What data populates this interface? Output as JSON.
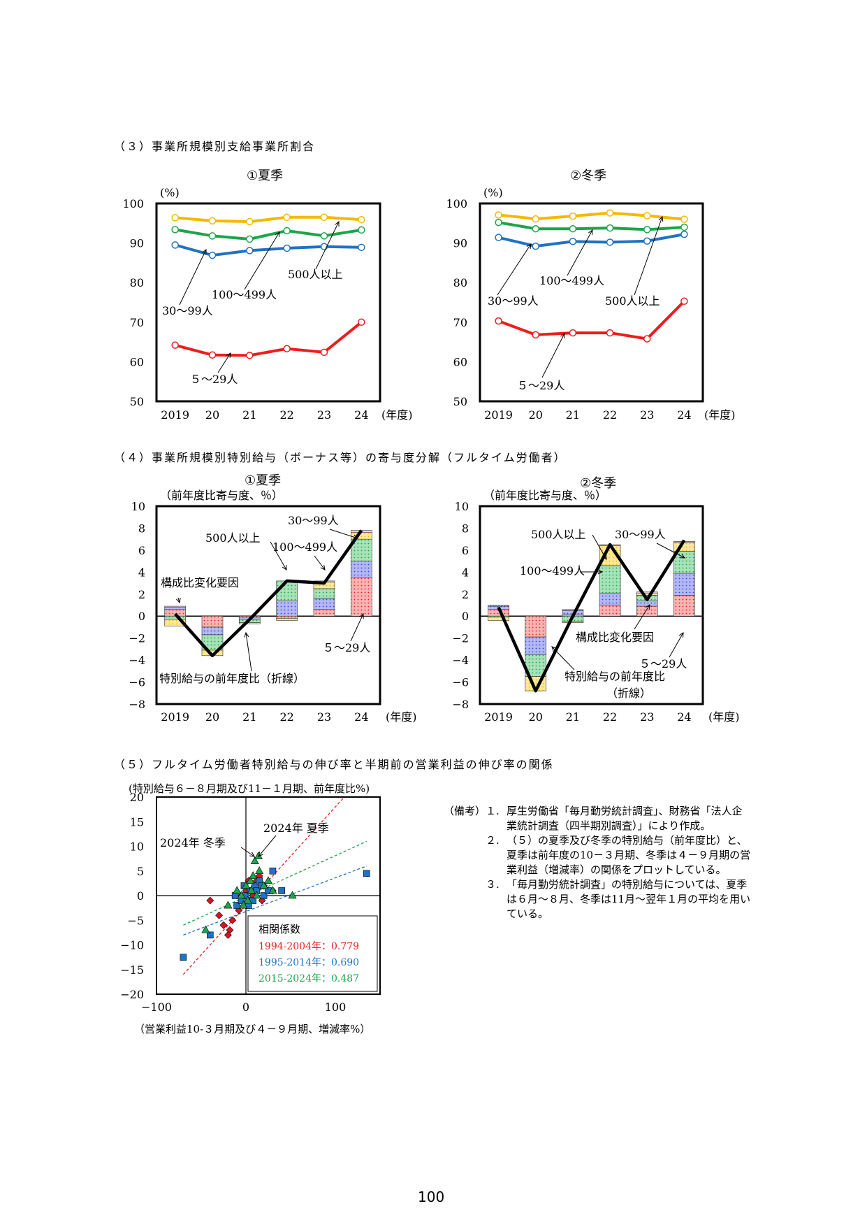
{
  "sections": {
    "s3": "（３）事業所規模別支給事業所割合",
    "s4": "（４）事業所規模別特別給与（ボーナス等）の寄与度分解（フルタイム労働者）",
    "s5": "（５）フルタイム労働者特別給与の伸び率と半期前の営業利益の伸び率の関係"
  },
  "colors": {
    "s500": "#f5b800",
    "s100": "#1aa64a",
    "s30": "#1f72c4",
    "s5": "#ee1c1c"
  },
  "chart_data": [
    {
      "id": "summer_ratio",
      "type": "line",
      "title": "①夏季",
      "ylabel": "(%)",
      "xunit": "(年度)",
      "x": [
        "2019",
        "20",
        "21",
        "22",
        "23",
        "24"
      ],
      "ylim": [
        50,
        100
      ],
      "yticks": [
        50,
        60,
        70,
        80,
        90,
        100
      ],
      "series": [
        {
          "name": "500人以上",
          "values": [
            96.4,
            95.6,
            95.4,
            96.5,
            96.5,
            95.9
          ]
        },
        {
          "name": "100〜499人",
          "values": [
            93.4,
            91.8,
            91.0,
            93.1,
            91.8,
            93.3
          ]
        },
        {
          "name": "30〜99人",
          "values": [
            89.5,
            86.9,
            88.1,
            88.7,
            89.1,
            88.9
          ]
        },
        {
          "name": "５〜29人",
          "values": [
            64.2,
            61.7,
            61.6,
            63.3,
            62.4,
            70.0
          ]
        }
      ]
    },
    {
      "id": "winter_ratio",
      "type": "line",
      "title": "②冬季",
      "ylabel": "(%)",
      "xunit": "(年度)",
      "x": [
        "2019",
        "20",
        "21",
        "22",
        "23",
        "24"
      ],
      "ylim": [
        50,
        100
      ],
      "yticks": [
        50,
        60,
        70,
        80,
        90,
        100
      ],
      "series": [
        {
          "name": "500人以上",
          "values": [
            97.1,
            96.1,
            96.8,
            97.6,
            96.9,
            96.0
          ]
        },
        {
          "name": "100〜499人",
          "values": [
            95.2,
            93.6,
            93.6,
            93.8,
            93.4,
            94.0
          ]
        },
        {
          "name": "30〜99人",
          "values": [
            91.4,
            89.2,
            90.4,
            90.2,
            90.5,
            92.2
          ]
        },
        {
          "name": "５〜29人",
          "values": [
            70.3,
            66.8,
            67.3,
            67.3,
            65.8,
            75.3
          ]
        }
      ]
    },
    {
      "id": "summer_contrib",
      "type": "bar",
      "title": "①夏季",
      "ylabel": "（前年度比寄与度、％）",
      "xunit": "(年度)",
      "x": [
        "2019",
        "20",
        "21",
        "22",
        "23",
        "24"
      ],
      "ylim": [
        -8,
        10
      ],
      "yticks": [
        -8,
        -6,
        -4,
        -2,
        0,
        2,
        4,
        6,
        8,
        10
      ],
      "stack_order": [
        "５〜29人",
        "30〜99人",
        "100〜499人",
        "500人以上",
        "構成比変化要因"
      ],
      "series": [
        {
          "name": "５〜29人",
          "values": [
            0.6,
            -1.0,
            -0.1,
            -0.2,
            0.6,
            3.5
          ]
        },
        {
          "name": "30〜99人",
          "values": [
            0.2,
            -0.7,
            -0.2,
            1.4,
            1.0,
            1.5
          ]
        },
        {
          "name": "100〜499人",
          "values": [
            -0.3,
            -1.4,
            -0.3,
            1.8,
            0.9,
            2.0
          ]
        },
        {
          "name": "500人以上",
          "values": [
            -0.6,
            -0.5,
            -0.1,
            -0.2,
            0.6,
            0.6
          ]
        },
        {
          "name": "構成比変化要因",
          "values": [
            0.1,
            0.0,
            0.0,
            0.0,
            0.1,
            0.2
          ]
        }
      ],
      "line": {
        "name": "特別給与の前年度比（折線）",
        "values": [
          0.2,
          -3.6,
          -0.3,
          3.2,
          3.0,
          7.8
        ]
      }
    },
    {
      "id": "winter_contrib",
      "type": "bar",
      "title": "②冬季",
      "ylabel": "（前年度比寄与度、％）",
      "xunit": "(年度)",
      "x": [
        "2019",
        "20",
        "21",
        "22",
        "23",
        "24"
      ],
      "ylim": [
        -8,
        10
      ],
      "yticks": [
        -8,
        -6,
        -4,
        -2,
        0,
        2,
        4,
        6,
        8,
        10
      ],
      "stack_order": [
        "５〜29人",
        "30〜99人",
        "100〜499人",
        "500人以上",
        "構成比変化要因"
      ],
      "series": [
        {
          "name": "５〜29人",
          "values": [
            0.6,
            -1.9,
            0.1,
            1.0,
            0.9,
            1.9
          ]
        },
        {
          "name": "30〜99人",
          "values": [
            0.3,
            -1.6,
            0.4,
            1.1,
            0.5,
            2.0
          ]
        },
        {
          "name": "100〜499人",
          "values": [
            -0.1,
            -2.0,
            -0.5,
            2.5,
            0.5,
            2.0
          ]
        },
        {
          "name": "500人以上",
          "values": [
            -0.3,
            -1.3,
            -0.1,
            1.8,
            0.2,
            0.8
          ]
        },
        {
          "name": "構成比変化要因",
          "values": [
            0.1,
            0.0,
            0.1,
            0.1,
            0.1,
            0.1
          ]
        }
      ],
      "line": {
        "name": "特別給与の前年度比（折線）",
        "values": [
          0.8,
          -6.8,
          0.0,
          6.5,
          1.5,
          6.9
        ]
      }
    },
    {
      "id": "scatter",
      "type": "scatter",
      "ylabel": "(特別給与６－８月期及び11－１月期、前年度比%)",
      "xlabel": "（営業利益10-３月期及び４－９月期、増減率%）",
      "xlim": [
        -100,
        150
      ],
      "ylim": [
        -20,
        20
      ],
      "xticks": [
        -100,
        0,
        100
      ],
      "yticks": [
        -20,
        -15,
        -10,
        -5,
        0,
        5,
        10,
        15,
        20
      ],
      "legend_title": "相関係数",
      "series": [
        {
          "name": "1994-2004年：0.779",
          "marker": "diamond",
          "points": [
            [
              -15,
              -5
            ],
            [
              -18,
              -7
            ],
            [
              -20,
              -8
            ],
            [
              -30,
              -4
            ],
            [
              -40,
              -1
            ],
            [
              -10,
              -2
            ],
            [
              -5,
              0
            ],
            [
              0,
              1
            ],
            [
              5,
              -1
            ],
            [
              10,
              2
            ],
            [
              12,
              3
            ],
            [
              15,
              4
            ],
            [
              20,
              2
            ],
            [
              25,
              1
            ],
            [
              30,
              1
            ],
            [
              -8,
              -3
            ],
            [
              3,
              3
            ],
            [
              8,
              0
            ],
            [
              -25,
              -6
            ],
            [
              18,
              -1
            ]
          ]
        },
        {
          "name": "1995-2014年：0.690",
          "marker": "square",
          "points": [
            [
              -70,
              -12.5
            ],
            [
              -40,
              -8
            ],
            [
              -10,
              -2
            ],
            [
              -5,
              -1
            ],
            [
              0,
              0
            ],
            [
              5,
              1
            ],
            [
              10,
              2
            ],
            [
              15,
              3
            ],
            [
              20,
              0
            ],
            [
              25,
              1
            ],
            [
              30,
              5
            ],
            [
              40,
              1
            ],
            [
              135,
              4.5
            ],
            [
              -12,
              0
            ],
            [
              8,
              -1
            ],
            [
              -2,
              2
            ],
            [
              3,
              -2
            ],
            [
              12,
              1
            ],
            [
              18,
              2
            ]
          ]
        },
        {
          "name": "2015-2024年：0.487",
          "marker": "triangle",
          "points": [
            [
              -45,
              -7
            ],
            [
              -20,
              -2
            ],
            [
              -5,
              0
            ],
            [
              0,
              2
            ],
            [
              5,
              3
            ],
            [
              8,
              4
            ],
            [
              10,
              7
            ],
            [
              14,
              8
            ],
            [
              20,
              2
            ],
            [
              25,
              3
            ],
            [
              30,
              1
            ],
            [
              52,
              0
            ],
            [
              -10,
              1
            ],
            [
              2,
              -1
            ],
            [
              6,
              1
            ],
            [
              12,
              0
            ],
            [
              -3,
              -2
            ],
            [
              15,
              5
            ]
          ]
        }
      ],
      "trendlines": [
        {
          "series": "1994-2004年：0.779",
          "x": [
            -70,
            110
          ],
          "y": [
            -16,
            20
          ]
        },
        {
          "series": "1995-2014年：0.690",
          "x": [
            -70,
            135
          ],
          "y": [
            -8,
            6
          ]
        },
        {
          "series": "2015-2024年：0.487",
          "x": [
            -70,
            135
          ],
          "y": [
            -6,
            11
          ]
        }
      ],
      "annotations": [
        "2024年 冬季",
        "2024年 夏季"
      ]
    }
  ],
  "labels": {
    "s500": "500人以上",
    "s100": "100〜499人",
    "s30": "30〜99人",
    "s5": "５〜29人",
    "comp": "構成比変化要因",
    "line_label": "特別給与の前年度比（折線）",
    "line_label_w1": "特別給与の前年度比",
    "line_label_w2": "（折線）"
  },
  "notes": {
    "label": "（備考）",
    "items": [
      {
        "num": "１.",
        "text": "厚生労働省「毎月勤労統計調査」、財務省「法人企業統計調査（四半期別調査）」により作成。"
      },
      {
        "num": "２.",
        "text": "（５）の夏季及び冬季の特別給与（前年度比）と、夏季は前年度の10－３月期、冬季は４－９月期の営業利益（増減率）の関係をプロットしている。"
      },
      {
        "num": "３.",
        "text": "「毎月勤労統計調査」の特別給与については、夏季は６月〜８月、冬季は11月〜翌年１月の平均を用いている。"
      }
    ]
  },
  "page_number": "100"
}
